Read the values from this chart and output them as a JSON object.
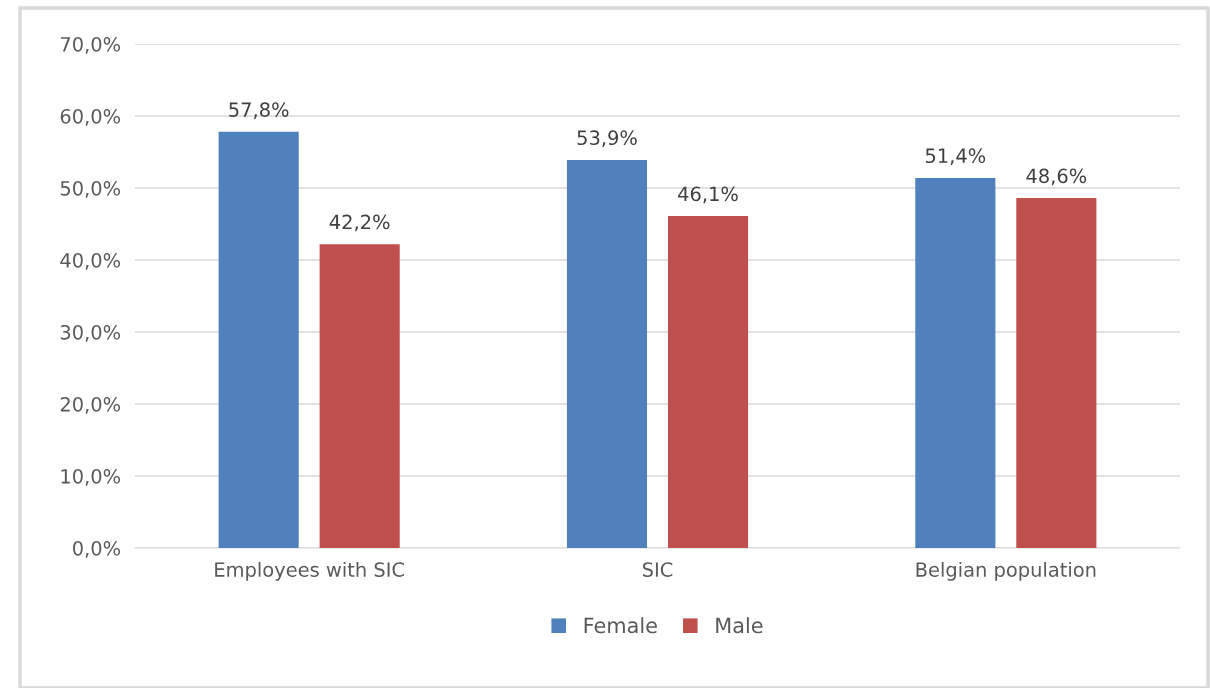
{
  "chart_data": {
    "type": "bar",
    "categories": [
      "Employees with SIC",
      "SIC",
      "Belgian population"
    ],
    "series": [
      {
        "name": "Female",
        "color": "#4f81bd",
        "values": [
          57.8,
          53.9,
          51.4
        ],
        "value_labels": [
          "57,8%",
          "53,9%",
          "51,4%"
        ]
      },
      {
        "name": "Male",
        "color": "#c0504d",
        "values": [
          42.2,
          46.1,
          48.6
        ],
        "value_labels": [
          "42,2%",
          "46,1%",
          "48,6%"
        ]
      }
    ],
    "ylim": [
      0,
      70
    ],
    "yticks": [
      {
        "value": 0,
        "label": "0,0%"
      },
      {
        "value": 10,
        "label": "10,0%"
      },
      {
        "value": 20,
        "label": "20,0%"
      },
      {
        "value": 30,
        "label": "30,0%"
      },
      {
        "value": 40,
        "label": "40,0%"
      },
      {
        "value": 50,
        "label": "50,0%"
      },
      {
        "value": 60,
        "label": "60,0%"
      },
      {
        "value": 70,
        "label": "70,0%"
      }
    ],
    "grid": "y",
    "legend": "bottom"
  }
}
